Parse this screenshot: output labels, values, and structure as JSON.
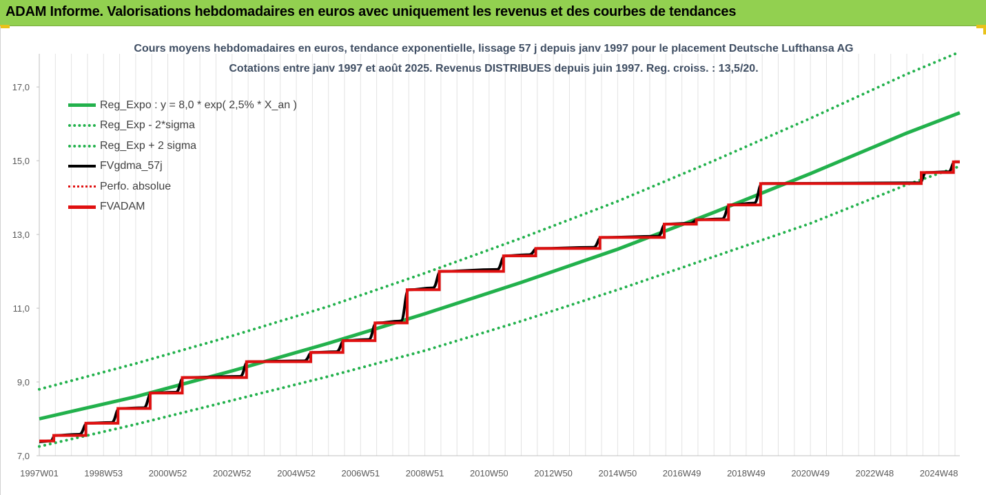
{
  "banner": {
    "title": "ADAM Informe. Valorisations hebdomadaires en euros avec uniquement les revenus et des courbes de tendances"
  },
  "colors": {
    "banner_bg": "#92d050",
    "trend_green": "#22b14c",
    "fvadam_red": "#e01010",
    "fvgdma_black": "#000000",
    "title_text": "#3f4e63",
    "corner_accent": "#e8c21a"
  },
  "chart_data": {
    "type": "line",
    "title": "Cours moyens hebdomadaires en euros, tendance exponentielle, lissage 57 j depuis janv 1997 pour le placement Deutsche Lufthansa AG",
    "subtitle": "Cotations entre janv 1997 et août 2025. Revenus DISTRIBUES depuis juin 1997. Reg. croiss. : 13,5/20.",
    "xlabel": "",
    "ylabel": "",
    "xlim": [
      1997.0,
      2025.65
    ],
    "ylim": [
      7.0,
      17.9
    ],
    "grid": "vertical",
    "legend_position": "top-left",
    "x_ticks": [
      {
        "label": "1997W01",
        "x": 1997.0
      },
      {
        "label": "1998W53",
        "x": 1999.0
      },
      {
        "label": "2000W52",
        "x": 2001.0
      },
      {
        "label": "2002W52",
        "x": 2003.0
      },
      {
        "label": "2004W52",
        "x": 2005.0
      },
      {
        "label": "2006W51",
        "x": 2007.0
      },
      {
        "label": "2008W51",
        "x": 2009.0
      },
      {
        "label": "2010W50",
        "x": 2011.0
      },
      {
        "label": "2012W50",
        "x": 2013.0
      },
      {
        "label": "2014W50",
        "x": 2015.0
      },
      {
        "label": "2016W49",
        "x": 2017.0
      },
      {
        "label": "2018W49",
        "x": 2019.0
      },
      {
        "label": "2020W49",
        "x": 2021.0
      },
      {
        "label": "2022W48",
        "x": 2023.0
      },
      {
        "label": "2024W48",
        "x": 2025.0
      }
    ],
    "y_ticks": [
      {
        "label": "7,0",
        "y": 7.0
      },
      {
        "label": "9,0",
        "y": 9.0
      },
      {
        "label": "11,0",
        "y": 11.0
      },
      {
        "label": "13,0",
        "y": 13.0
      },
      {
        "label": "15,0",
        "y": 15.0
      },
      {
        "label": "17,0",
        "y": 17.0
      }
    ],
    "series": [
      {
        "name": "Reg_Expo : y = 8,0 * exp( 2,5% *  X_an )",
        "style": "solid",
        "color": "#22b14c",
        "points": [
          [
            1997.0,
            8.0
          ],
          [
            2000.0,
            8.6
          ],
          [
            2003.0,
            9.3
          ],
          [
            2006.0,
            10.05
          ],
          [
            2009.0,
            10.85
          ],
          [
            2012.0,
            11.7
          ],
          [
            2015.0,
            12.6
          ],
          [
            2018.0,
            13.6
          ],
          [
            2021.0,
            14.65
          ],
          [
            2024.0,
            15.75
          ],
          [
            2025.65,
            16.3
          ]
        ]
      },
      {
        "name": "Reg_Exp - 2*sigma",
        "style": "dotted",
        "color": "#22b14c",
        "points": [
          [
            1997.0,
            7.25
          ],
          [
            2000.0,
            7.85
          ],
          [
            2003.0,
            8.5
          ],
          [
            2006.0,
            9.15
          ],
          [
            2009.0,
            9.85
          ],
          [
            2012.0,
            10.65
          ],
          [
            2015.0,
            11.5
          ],
          [
            2018.0,
            12.4
          ],
          [
            2021.0,
            13.3
          ],
          [
            2024.0,
            14.35
          ],
          [
            2025.65,
            14.85
          ]
        ]
      },
      {
        "name": "Reg_Exp + 2 sigma",
        "style": "dotted",
        "color": "#22b14c",
        "points": [
          [
            1997.0,
            8.8
          ],
          [
            2000.0,
            9.5
          ],
          [
            2003.0,
            10.25
          ],
          [
            2006.0,
            11.05
          ],
          [
            2009.0,
            11.95
          ],
          [
            2012.0,
            12.9
          ],
          [
            2015.0,
            13.9
          ],
          [
            2018.0,
            15.0
          ],
          [
            2021.0,
            16.15
          ],
          [
            2024.0,
            17.35
          ],
          [
            2025.65,
            17.95
          ]
        ]
      },
      {
        "name": "FVgdma_57j",
        "style": "solid",
        "color": "#000000",
        "smooth_steps": true,
        "points": [
          [
            1997.0,
            7.38
          ],
          [
            1997.35,
            7.4
          ],
          [
            1997.5,
            7.55
          ],
          [
            1998.25,
            7.58
          ],
          [
            1998.5,
            7.88
          ],
          [
            1999.25,
            7.9
          ],
          [
            1999.5,
            8.28
          ],
          [
            2000.25,
            8.3
          ],
          [
            2000.5,
            8.7
          ],
          [
            2001.25,
            8.72
          ],
          [
            2001.5,
            9.12
          ],
          [
            2003.25,
            9.15
          ],
          [
            2003.5,
            9.55
          ],
          [
            2005.25,
            9.57
          ],
          [
            2005.5,
            9.8
          ],
          [
            2006.25,
            9.82
          ],
          [
            2006.5,
            10.12
          ],
          [
            2007.25,
            10.15
          ],
          [
            2007.5,
            10.6
          ],
          [
            2008.25,
            10.65
          ],
          [
            2008.5,
            11.5
          ],
          [
            2009.25,
            11.55
          ],
          [
            2009.5,
            12.0
          ],
          [
            2011.25,
            12.05
          ],
          [
            2011.5,
            12.42
          ],
          [
            2012.25,
            12.45
          ],
          [
            2012.5,
            12.62
          ],
          [
            2014.25,
            12.65
          ],
          [
            2014.5,
            12.92
          ],
          [
            2016.25,
            12.95
          ],
          [
            2016.5,
            13.28
          ],
          [
            2017.25,
            13.3
          ],
          [
            2017.5,
            13.4
          ],
          [
            2018.25,
            13.42
          ],
          [
            2018.5,
            13.8
          ],
          [
            2019.25,
            13.85
          ],
          [
            2019.5,
            14.38
          ],
          [
            2024.4,
            14.4
          ],
          [
            2024.6,
            14.68
          ],
          [
            2025.3,
            14.7
          ],
          [
            2025.5,
            14.97
          ],
          [
            2025.65,
            14.97
          ]
        ]
      },
      {
        "name": "Perfo. absolue",
        "style": "dotted",
        "color": "#e01010",
        "points": []
      },
      {
        "name": "FVADAM",
        "style": "solid",
        "color": "#e01010",
        "step_points": [
          [
            1997.0,
            7.4
          ],
          [
            1997.45,
            7.55
          ],
          [
            1998.45,
            7.88
          ],
          [
            1999.45,
            8.28
          ],
          [
            2000.45,
            8.7
          ],
          [
            2001.45,
            9.12
          ],
          [
            2003.45,
            9.55
          ],
          [
            2005.45,
            9.8
          ],
          [
            2006.45,
            10.12
          ],
          [
            2007.45,
            10.6
          ],
          [
            2008.45,
            11.5
          ],
          [
            2009.45,
            12.0
          ],
          [
            2011.45,
            12.42
          ],
          [
            2012.45,
            12.62
          ],
          [
            2014.45,
            12.92
          ],
          [
            2016.45,
            13.28
          ],
          [
            2017.45,
            13.4
          ],
          [
            2018.45,
            13.8
          ],
          [
            2019.45,
            14.38
          ],
          [
            2024.45,
            14.68
          ],
          [
            2025.45,
            14.97
          ],
          [
            2025.65,
            14.97
          ]
        ]
      }
    ]
  }
}
